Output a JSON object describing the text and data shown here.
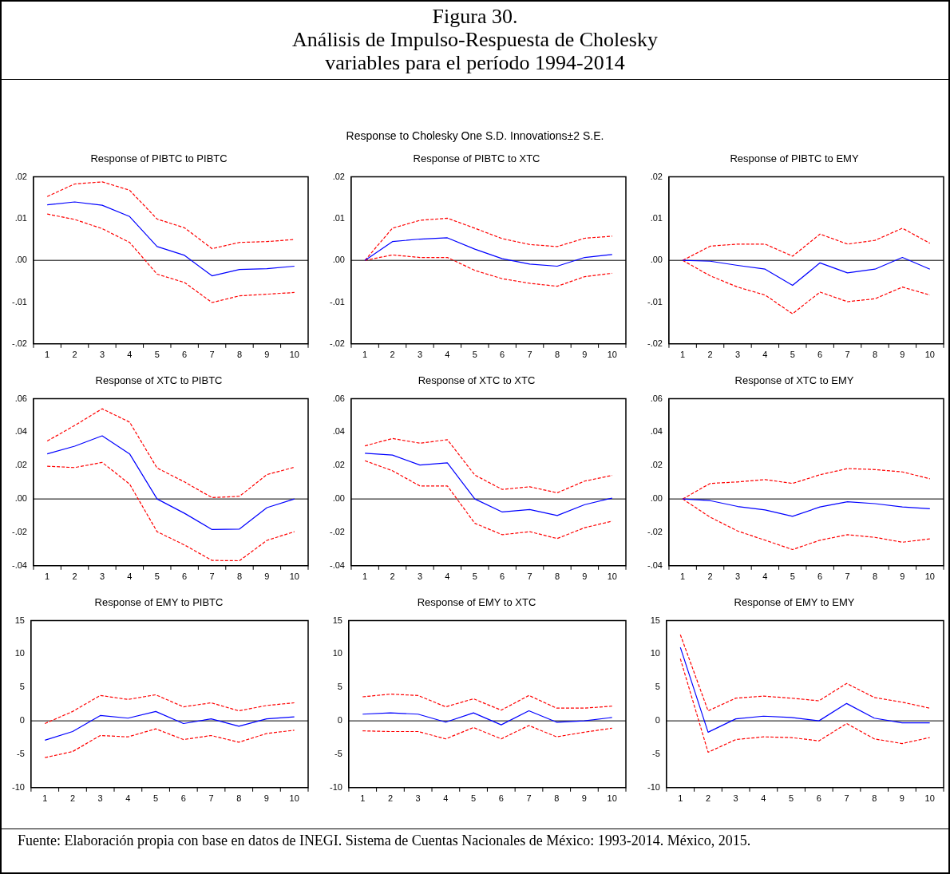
{
  "chart_data": [
    {
      "type": "other",
      "title": "Figura 30.\nAnálisis de Impulso-Respuesta de Cholesky\nvariables para el período 1994-2014",
      "subtitle": "Response to Cholesky One S.D. Innovations±2 S.E."
    },
    {
      "type": "line",
      "title": "Response of PIBTC to PIBTC",
      "categories": [
        "1",
        "2",
        "3",
        "4",
        "5",
        "6",
        "7",
        "8",
        "9",
        "10"
      ],
      "ylim": [
        -0.02,
        0.02
      ],
      "yticks": [
        {
          "value": -0.02,
          "label": "-.02"
        },
        {
          "value": -0.01,
          "label": "-.01"
        },
        {
          "value": 0,
          "label": ".00"
        },
        {
          "value": 0.01,
          "label": ".01"
        },
        {
          "value": 0.02,
          "label": ".02"
        }
      ],
      "ref_lines": [
        {
          "axis": "y",
          "value": 0,
          "color": "#000000"
        }
      ],
      "series": [
        {
          "color": "#0000ff",
          "line_style": "solid",
          "values": [
            0.0133,
            0.014,
            0.0132,
            0.0105,
            0.0033,
            0.0012,
            -0.0037,
            -0.0022,
            -0.002,
            -0.0014
          ]
        },
        {
          "color": "#ff0000",
          "line_style": "dashed",
          "values": [
            0.0153,
            0.0183,
            0.0188,
            0.0168,
            0.0099,
            0.0078,
            0.0028,
            0.0043,
            0.0045,
            0.005
          ]
        },
        {
          "color": "#ff0000",
          "line_style": "dashed",
          "values": [
            0.0111,
            0.0098,
            0.0076,
            0.0043,
            -0.0033,
            -0.0053,
            -0.0101,
            -0.0085,
            -0.0081,
            -0.0077
          ]
        }
      ]
    },
    {
      "type": "line",
      "title": "Response of PIBTC to XTC",
      "categories": [
        "1",
        "2",
        "3",
        "4",
        "5",
        "6",
        "7",
        "8",
        "9",
        "10"
      ],
      "ylim": [
        -0.02,
        0.02
      ],
      "yticks": [
        {
          "value": -0.02,
          "label": "-.02"
        },
        {
          "value": -0.01,
          "label": "-.01"
        },
        {
          "value": 0,
          "label": ".00"
        },
        {
          "value": 0.01,
          "label": ".01"
        },
        {
          "value": 0.02,
          "label": ".02"
        }
      ],
      "ref_lines": [
        {
          "axis": "y",
          "value": 0,
          "color": "#000000"
        }
      ],
      "series": [
        {
          "color": "#0000ff",
          "line_style": "solid",
          "values": [
            0,
            0.0045,
            0.0051,
            0.0054,
            0.0027,
            0.0004,
            -0.0009,
            -0.0014,
            0.0007,
            0.0014
          ]
        },
        {
          "color": "#ff0000",
          "line_style": "dashed",
          "values": [
            0,
            0.0077,
            0.0096,
            0.0101,
            0.0077,
            0.0052,
            0.0038,
            0.0033,
            0.0053,
            0.0058
          ]
        },
        {
          "color": "#ff0000",
          "line_style": "dashed",
          "values": [
            0,
            0.0013,
            0.0007,
            0.0007,
            -0.0024,
            -0.0044,
            -0.0055,
            -0.0062,
            -0.0039,
            -0.0031
          ]
        }
      ]
    },
    {
      "type": "line",
      "title": "Response of PIBTC to EMY",
      "categories": [
        "1",
        "2",
        "3",
        "4",
        "5",
        "6",
        "7",
        "8",
        "9",
        "10"
      ],
      "ylim": [
        -0.02,
        0.02
      ],
      "yticks": [
        {
          "value": -0.02,
          "label": "-.02"
        },
        {
          "value": -0.01,
          "label": "-.01"
        },
        {
          "value": 0,
          "label": ".00"
        },
        {
          "value": 0.01,
          "label": ".01"
        },
        {
          "value": 0.02,
          "label": ".02"
        }
      ],
      "ref_lines": [
        {
          "axis": "y",
          "value": 0,
          "color": "#000000"
        }
      ],
      "series": [
        {
          "color": "#0000ff",
          "line_style": "solid",
          "values": [
            0,
            -0.0002,
            -0.0012,
            -0.0021,
            -0.006,
            -0.0006,
            -0.003,
            -0.0021,
            0.0007,
            -0.0021
          ]
        },
        {
          "color": "#ff0000",
          "line_style": "dashed",
          "values": [
            0,
            0.0034,
            0.0039,
            0.0039,
            0.001,
            0.0063,
            0.0039,
            0.0048,
            0.0077,
            0.0041
          ]
        },
        {
          "color": "#ff0000",
          "line_style": "dashed",
          "values": [
            0,
            -0.0037,
            -0.0064,
            -0.0083,
            -0.0128,
            -0.0076,
            -0.0099,
            -0.0092,
            -0.0064,
            -0.0083
          ]
        }
      ]
    },
    {
      "type": "line",
      "title": "Response of XTC to PIBTC",
      "categories": [
        "1",
        "2",
        "3",
        "4",
        "5",
        "6",
        "7",
        "8",
        "9",
        "10"
      ],
      "ylim": [
        -0.04,
        0.06
      ],
      "yticks": [
        {
          "value": -0.04,
          "label": "-.04"
        },
        {
          "value": -0.02,
          "label": "-.02"
        },
        {
          "value": 0,
          "label": ".00"
        },
        {
          "value": 0.02,
          "label": ".02"
        },
        {
          "value": 0.04,
          "label": ".04"
        },
        {
          "value": 0.06,
          "label": ".06"
        }
      ],
      "ref_lines": [
        {
          "axis": "y",
          "value": 0,
          "color": "#000000"
        }
      ],
      "series": [
        {
          "color": "#0000ff",
          "line_style": "solid",
          "values": [
            0.027,
            0.0316,
            0.0378,
            0.027,
            0,
            -0.0086,
            -0.0183,
            -0.018,
            -0.0052,
            0
          ]
        },
        {
          "color": "#ff0000",
          "line_style": "dashed",
          "values": [
            0.0347,
            0.044,
            0.054,
            0.046,
            0.0185,
            0.0102,
            0.0008,
            0.0016,
            0.0146,
            0.019
          ]
        },
        {
          "color": "#ff0000",
          "line_style": "dashed",
          "values": [
            0.0196,
            0.0188,
            0.0219,
            0.0089,
            -0.0196,
            -0.0276,
            -0.0368,
            -0.037,
            -0.0248,
            -0.0196
          ]
        }
      ]
    },
    {
      "type": "line",
      "title": "Response of XTC to XTC",
      "categories": [
        "1",
        "2",
        "3",
        "4",
        "5",
        "6",
        "7",
        "8",
        "9",
        "10"
      ],
      "ylim": [
        -0.04,
        0.06
      ],
      "yticks": [
        {
          "value": -0.04,
          "label": "-.04"
        },
        {
          "value": -0.02,
          "label": "-.02"
        },
        {
          "value": 0,
          "label": ".00"
        },
        {
          "value": 0.02,
          "label": ".02"
        },
        {
          "value": 0.04,
          "label": ".04"
        },
        {
          "value": 0.06,
          "label": ".06"
        }
      ],
      "ref_lines": [
        {
          "axis": "y",
          "value": 0,
          "color": "#000000"
        }
      ],
      "series": [
        {
          "color": "#0000ff",
          "line_style": "solid",
          "values": [
            0.0274,
            0.0263,
            0.0203,
            0.0216,
            0,
            -0.0078,
            -0.0063,
            -0.0099,
            -0.0034,
            0.0005
          ]
        },
        {
          "color": "#ff0000",
          "line_style": "dashed",
          "values": [
            0.0318,
            0.0362,
            0.0334,
            0.0355,
            0.0143,
            0.0057,
            0.0073,
            0.0037,
            0.0107,
            0.0141
          ]
        },
        {
          "color": "#ff0000",
          "line_style": "dashed",
          "values": [
            0.0229,
            0.0169,
            0.0078,
            0.0078,
            -0.0146,
            -0.0214,
            -0.0196,
            -0.0237,
            -0.0172,
            -0.0133
          ]
        }
      ]
    },
    {
      "type": "line",
      "title": "Response of XTC to EMY",
      "categories": [
        "1",
        "2",
        "3",
        "4",
        "5",
        "6",
        "7",
        "8",
        "9",
        "10"
      ],
      "ylim": [
        -0.04,
        0.06
      ],
      "yticks": [
        {
          "value": -0.04,
          "label": "-.04"
        },
        {
          "value": -0.02,
          "label": "-.02"
        },
        {
          "value": 0,
          "label": ".00"
        },
        {
          "value": 0.02,
          "label": ".02"
        },
        {
          "value": 0.04,
          "label": ".04"
        },
        {
          "value": 0.06,
          "label": ".06"
        }
      ],
      "ref_lines": [
        {
          "axis": "y",
          "value": 0,
          "color": "#000000"
        }
      ],
      "series": [
        {
          "color": "#0000ff",
          "line_style": "solid",
          "values": [
            0,
            -0.001,
            -0.0045,
            -0.0066,
            -0.0104,
            -0.0048,
            -0.0017,
            -0.0028,
            -0.0048,
            -0.0059
          ]
        },
        {
          "color": "#ff0000",
          "line_style": "dashed",
          "values": [
            0,
            0.0093,
            0.0102,
            0.0116,
            0.0093,
            0.0145,
            0.0182,
            0.0176,
            0.0162,
            0.0121
          ]
        },
        {
          "color": "#ff0000",
          "line_style": "dashed",
          "values": [
            0,
            -0.0109,
            -0.0192,
            -0.0247,
            -0.0303,
            -0.0247,
            -0.0214,
            -0.023,
            -0.0259,
            -0.0239
          ]
        }
      ]
    },
    {
      "type": "line",
      "title": "Response of EMY to PIBTC",
      "categories": [
        "1",
        "2",
        "3",
        "4",
        "5",
        "6",
        "7",
        "8",
        "9",
        "10"
      ],
      "ylim": [
        -10,
        15
      ],
      "yticks": [
        -10,
        -5,
        0,
        5,
        10,
        15
      ],
      "ref_lines": [
        {
          "axis": "y",
          "value": 0,
          "color": "#000000"
        }
      ],
      "series": [
        {
          "color": "#0000ff",
          "line_style": "solid",
          "values": [
            -2.9,
            -1.6,
            0.8,
            0.4,
            1.4,
            -0.4,
            0.3,
            -0.8,
            0.3,
            0.6
          ]
        },
        {
          "color": "#ff0000",
          "line_style": "dashed",
          "values": [
            -0.4,
            1.4,
            3.8,
            3.2,
            3.9,
            2.1,
            2.7,
            1.5,
            2.3,
            2.7
          ]
        },
        {
          "color": "#ff0000",
          "line_style": "dashed",
          "values": [
            -5.5,
            -4.6,
            -2.2,
            -2.4,
            -1.2,
            -2.8,
            -2.2,
            -3.2,
            -1.9,
            -1.4
          ]
        }
      ]
    },
    {
      "type": "line",
      "title": "Response of EMY to XTC",
      "categories": [
        "1",
        "2",
        "3",
        "4",
        "5",
        "6",
        "7",
        "8",
        "9",
        "10"
      ],
      "ylim": [
        -10,
        15
      ],
      "yticks": [
        -10,
        -5,
        0,
        5,
        10,
        15
      ],
      "ref_lines": [
        {
          "axis": "y",
          "value": 0,
          "color": "#000000"
        }
      ],
      "series": [
        {
          "color": "#0000ff",
          "line_style": "solid",
          "values": [
            1.0,
            1.2,
            1.0,
            -0.2,
            1.2,
            -0.6,
            1.5,
            -0.2,
            0,
            0.5
          ]
        },
        {
          "color": "#ff0000",
          "line_style": "dashed",
          "values": [
            3.6,
            4.0,
            3.8,
            2.1,
            3.3,
            1.6,
            3.8,
            1.9,
            1.9,
            2.2
          ]
        },
        {
          "color": "#ff0000",
          "line_style": "dashed",
          "values": [
            -1.5,
            -1.6,
            -1.6,
            -2.7,
            -1.0,
            -2.7,
            -0.7,
            -2.4,
            -1.7,
            -1.1
          ]
        }
      ]
    },
    {
      "type": "line",
      "title": "Response of EMY to EMY",
      "categories": [
        "1",
        "2",
        "3",
        "4",
        "5",
        "6",
        "7",
        "8",
        "9",
        "10"
      ],
      "ylim": [
        -10,
        15
      ],
      "yticks": [
        -10,
        -5,
        0,
        5,
        10,
        15
      ],
      "ref_lines": [
        {
          "axis": "y",
          "value": 0,
          "color": "#000000"
        }
      ],
      "series": [
        {
          "color": "#0000ff",
          "line_style": "solid",
          "values": [
            11.0,
            -1.7,
            0.3,
            0.7,
            0.5,
            0,
            2.6,
            0.4,
            -0.3,
            -0.3
          ]
        },
        {
          "color": "#ff0000",
          "line_style": "dashed",
          "values": [
            12.9,
            1.5,
            3.4,
            3.7,
            3.4,
            3.0,
            5.6,
            3.5,
            2.8,
            1.9
          ]
        },
        {
          "color": "#ff0000",
          "line_style": "dashed",
          "values": [
            9.3,
            -4.7,
            -2.8,
            -2.4,
            -2.5,
            -3.0,
            -0.4,
            -2.7,
            -3.4,
            -2.5
          ]
        }
      ]
    },
    {
      "type": "other",
      "annotations": [
        "Fuente: Elaboración propia con base en datos de INEGI. Sistema de Cuentas Nacionales de México: 1993-2014. México, 2015."
      ]
    }
  ]
}
